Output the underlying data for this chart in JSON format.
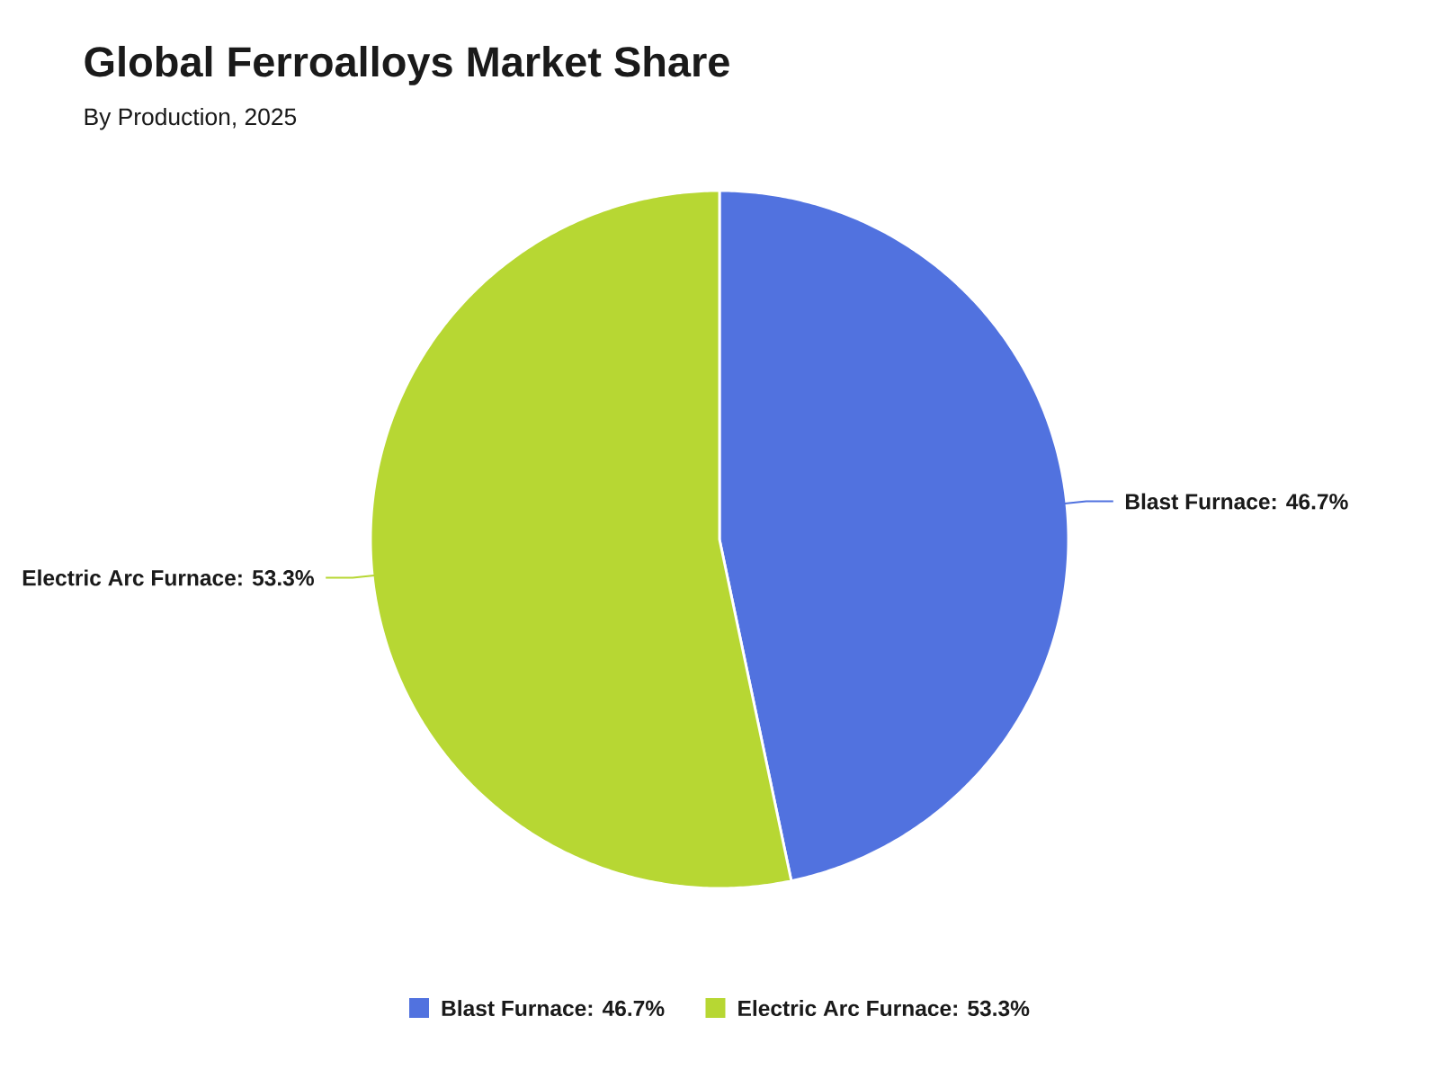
{
  "chart_data": {
    "type": "pie",
    "title": "Global Ferroalloys Market Share",
    "subtitle": "By Production, 2025",
    "categories": [
      "Blast Furnace: 46.7%",
      "Electric Arc Furnace: 53.3%"
    ],
    "values": [
      46.7,
      53.3
    ],
    "colors": [
      "#5172df",
      "#b7d733"
    ],
    "value_labels": [
      "Blast Furnace: 46.7%",
      "Electric Arc Furnace: 53.3%"
    ],
    "legend": "bottom"
  }
}
